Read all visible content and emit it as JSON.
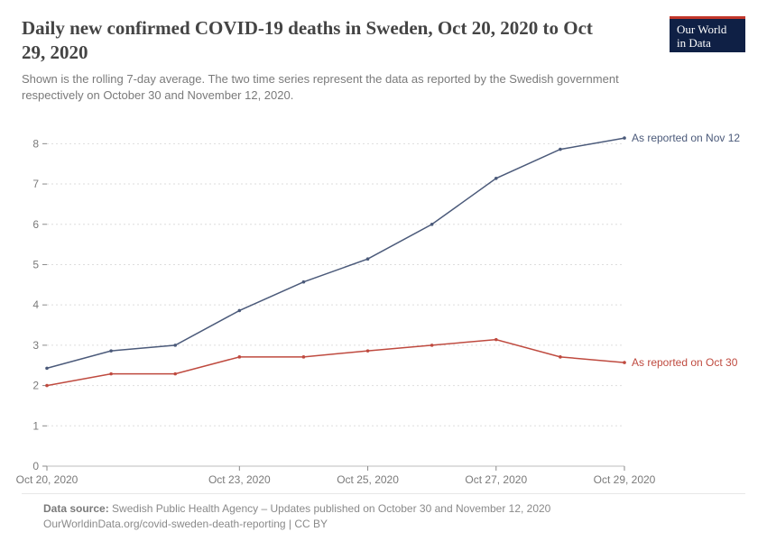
{
  "header": {
    "title": "Daily new confirmed COVID-19 deaths in Sweden, Oct 20, 2020 to Oct 29, 2020",
    "subtitle": "Shown is the rolling 7-day average. The two time series represent the data as reported by the Swedish government respectively on October 30 and November 12, 2020."
  },
  "logo": {
    "line1": "Our World",
    "line2": "in Data"
  },
  "chart": {
    "type": "line",
    "background_color": "#ffffff",
    "grid_color": "#dddddd",
    "grid_dash": "2,3",
    "axis_tick_color": "#8a8a8a",
    "label_fontsize": 12,
    "ylim": [
      0,
      8.5
    ],
    "yticks": [
      0,
      1,
      2,
      3,
      4,
      5,
      6,
      7,
      8
    ],
    "x_count": 10,
    "xtick_indices": [
      0,
      3,
      5,
      7,
      9
    ],
    "xtick_labels": [
      "Oct 20, 2020",
      "Oct 23, 2020",
      "Oct 25, 2020",
      "Oct 27, 2020",
      "Oct 29, 2020"
    ],
    "line_width": 1.5,
    "marker_radius": 1.8,
    "series": [
      {
        "name": "nov12",
        "label": "As reported on Nov 12",
        "color": "#4b5a7a",
        "values": [
          2.43,
          2.86,
          3.0,
          3.86,
          4.57,
          5.14,
          6.0,
          7.14,
          7.86,
          8.14
        ]
      },
      {
        "name": "oct30",
        "label": "As reported on Oct 30",
        "color": "#bf4a3f",
        "values": [
          2.0,
          2.29,
          2.29,
          2.71,
          2.71,
          2.86,
          3.0,
          3.14,
          2.71,
          2.57
        ]
      }
    ]
  },
  "footer": {
    "source_label": "Data source:",
    "source_text": "Swedish Public Health Agency – Updates published on October 30 and November 12, 2020",
    "link_text": "OurWorldinData.org/covid-sweden-death-reporting | CC BY"
  }
}
